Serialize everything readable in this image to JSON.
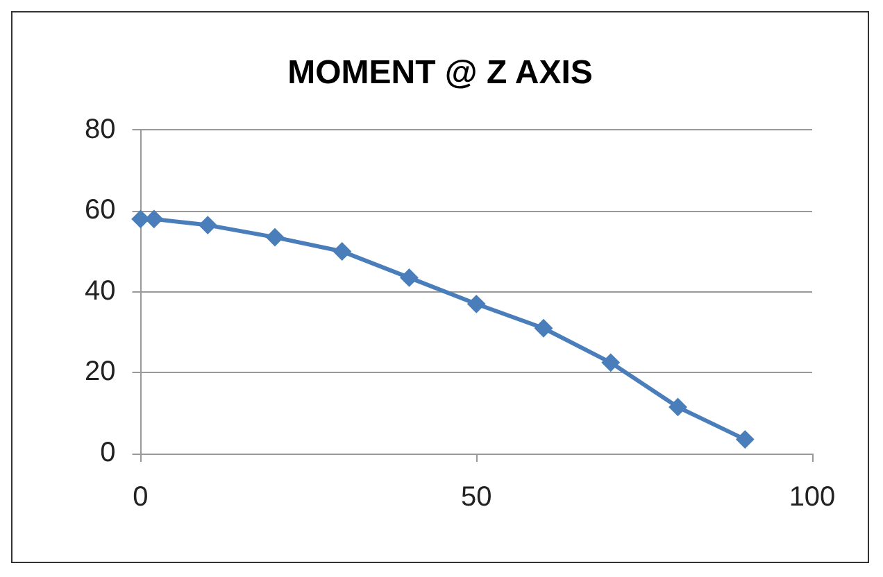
{
  "chart_data": {
    "type": "line",
    "title": "MOMENT @ Z AXIS",
    "x": [
      0,
      2,
      10,
      20,
      30,
      40,
      50,
      60,
      70,
      80,
      90
    ],
    "series": [
      {
        "color": "#4a7ebb",
        "values": [
          58,
          58,
          56.5,
          53.5,
          50,
          43.5,
          37,
          31,
          22.5,
          11.5,
          3.5
        ]
      }
    ],
    "xlim": [
      0,
      100
    ],
    "xticks": [
      0,
      50,
      100
    ],
    "ylim": [
      0,
      80
    ],
    "yticks": [
      0,
      20,
      40,
      60,
      80
    ],
    "grid": "y",
    "legend": false,
    "marker": "diamond",
    "line_style": "solid"
  }
}
